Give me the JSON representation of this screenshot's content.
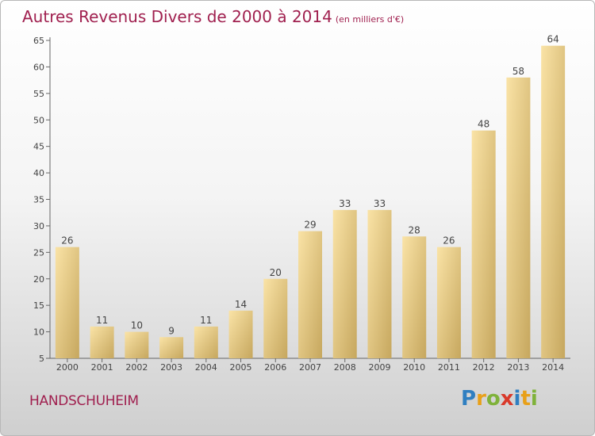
{
  "header": {
    "title": "Autres Revenus Divers de 2000 à 2014",
    "unit": "(en milliers d'€)"
  },
  "footer": {
    "commune": "HANDSCHUHEIM",
    "logo": [
      "P",
      "r",
      "o",
      "x",
      "i",
      "t",
      "i"
    ]
  },
  "chart_data": {
    "type": "bar",
    "title": "Autres Revenus Divers de 2000 à 2014",
    "subtitle": "(en milliers d'€)",
    "xlabel": "",
    "ylabel": "",
    "categories": [
      "2000",
      "2001",
      "2002",
      "2003",
      "2004",
      "2005",
      "2006",
      "2007",
      "2008",
      "2009",
      "2010",
      "2011",
      "2012",
      "2013",
      "2014"
    ],
    "values": [
      26,
      11,
      10,
      9,
      11,
      14,
      20,
      29,
      33,
      33,
      28,
      26,
      48,
      58,
      64
    ],
    "ylim": [
      5,
      65
    ],
    "yticks": [
      5,
      10,
      15,
      20,
      25,
      30,
      35,
      40,
      45,
      50,
      55,
      60,
      65
    ],
    "grid": false,
    "legend": "none",
    "colors": {
      "bar_light": "#f8dc96",
      "bar_dark": "#c9ac63",
      "title": "#a0204f"
    }
  }
}
